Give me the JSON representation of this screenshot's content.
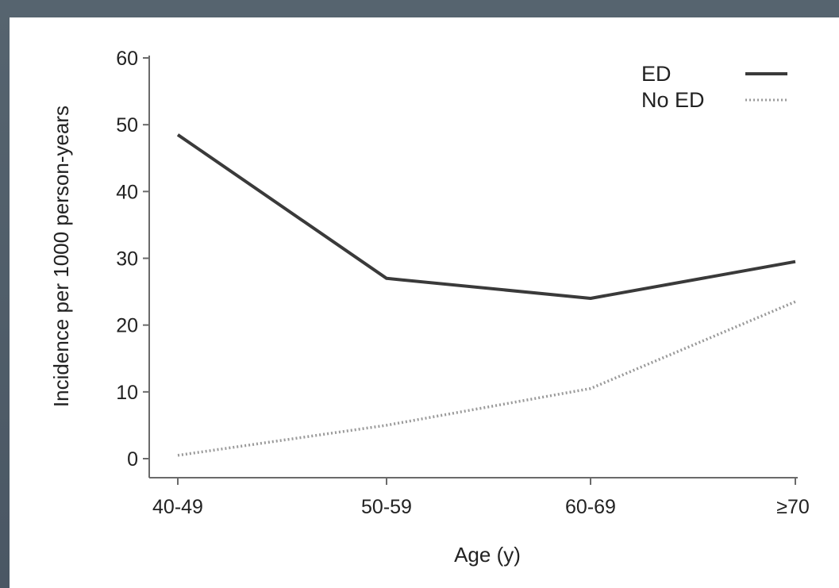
{
  "chart_data": {
    "type": "line",
    "title": "",
    "xlabel": "Age (y)",
    "ylabel": "Incidence per 1000 person-years",
    "categories": [
      "40-49",
      "50-59",
      "60-69",
      "≥70"
    ],
    "yticks": [
      "0",
      "10",
      "20",
      "30",
      "40",
      "50",
      "60"
    ],
    "ylim": [
      0,
      60
    ],
    "grid": false,
    "legend_position": "top-right",
    "series": [
      {
        "name": "ED",
        "values": [
          48.5,
          27.0,
          24.0,
          29.5
        ],
        "style": "solid",
        "color": "#3a3a3a"
      },
      {
        "name": "No ED",
        "values": [
          0.5,
          5.0,
          10.5,
          23.5
        ],
        "style": "dotted",
        "color": "#9a9a9a"
      }
    ]
  },
  "colors": {
    "frame": "#4e5d6b",
    "panel": "#ffffff",
    "axis": "#6a6a6a"
  }
}
